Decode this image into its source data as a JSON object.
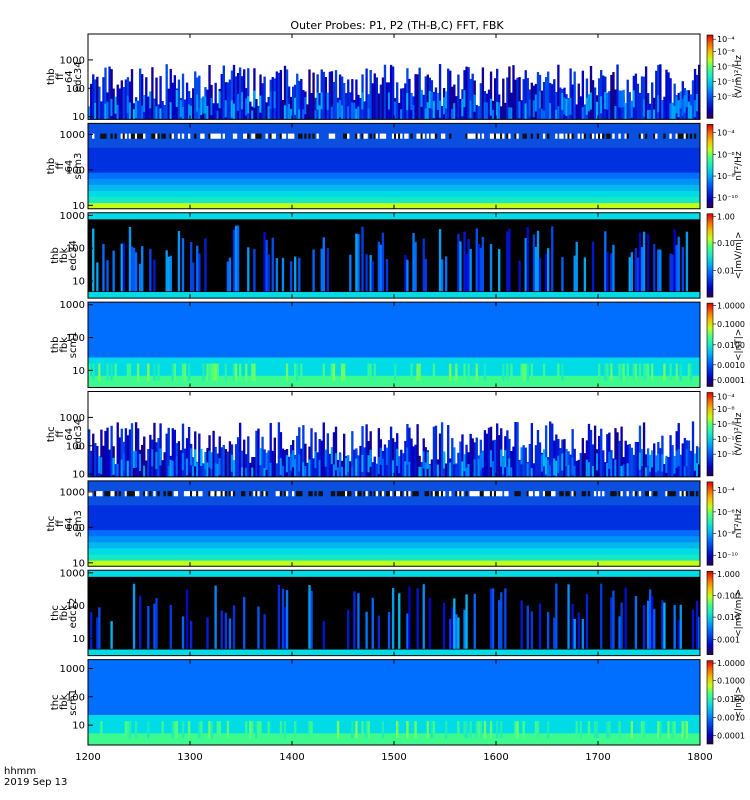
{
  "chart_data": {
    "type": "heatmap",
    "title": "Outer Probes: P1, P2 (TH-B,C) FFT, FBK",
    "x_label_lines": [
      "hhmm",
      "2019 Sep 13"
    ],
    "x_ticks": [
      {
        "v": 1200,
        "label": "1200"
      },
      {
        "v": 1300,
        "label": "1300"
      },
      {
        "v": 1400,
        "label": "1400"
      },
      {
        "v": 1500,
        "label": "1500"
      },
      {
        "v": 1600,
        "label": "1600"
      },
      {
        "v": 1700,
        "label": "1700"
      },
      {
        "v": 1800,
        "label": "1800"
      }
    ],
    "xlim": [
      1200,
      1800
    ],
    "panels": [
      {
        "id": "thb-fft-edc34",
        "ylabel": [
          "thb",
          "ff",
          "64",
          "edc34"
        ],
        "yrange": [
          8,
          8192
        ],
        "yticks": [
          {
            "v": 10,
            "label": "10"
          },
          {
            "v": 100,
            "label": "100"
          },
          {
            "v": 1000,
            "label": "1000"
          }
        ],
        "cb_unit": "(V/m)²/Hz",
        "cb_ticks": [
          {
            "pos": 0.05,
            "label": "10⁻⁴"
          },
          {
            "pos": 0.2,
            "label": "10⁻⁶"
          },
          {
            "pos": 0.38,
            "label": "10⁻⁸"
          },
          {
            "pos": 0.56,
            "label": "10⁻¹⁰"
          },
          {
            "pos": 0.74,
            "label": "10⁻¹²"
          }
        ],
        "style": "e-fft"
      },
      {
        "id": "thb-fft-scm3",
        "ylabel": [
          "thb",
          "ff",
          "64",
          "scm3"
        ],
        "yrange": [
          8,
          2048
        ],
        "yticks": [
          {
            "v": 10,
            "label": "10"
          },
          {
            "v": 100,
            "label": "100"
          },
          {
            "v": 1000,
            "label": "1000"
          }
        ],
        "cb_unit": "nT²/Hz",
        "cb_ticks": [
          {
            "pos": 0.1,
            "label": "10⁻⁴"
          },
          {
            "pos": 0.36,
            "label": "10⁻⁶"
          },
          {
            "pos": 0.62,
            "label": "10⁻⁸"
          },
          {
            "pos": 0.88,
            "label": "10⁻¹⁰"
          }
        ],
        "style": "b-fft"
      },
      {
        "id": "thb-fbk-edc34",
        "ylabel": [
          "thb",
          "fbk",
          "edc34"
        ],
        "yrange": [
          3,
          1200
        ],
        "yticks": [
          {
            "v": 10,
            "label": "10"
          },
          {
            "v": 100,
            "label": "100"
          },
          {
            "v": 1000,
            "label": "1000"
          }
        ],
        "cb_unit": "<|mV/m|>",
        "cb_ticks": [
          {
            "pos": 0.03,
            "label": "1.00"
          },
          {
            "pos": 0.35,
            "label": "0.10"
          },
          {
            "pos": 0.68,
            "label": "0.01"
          }
        ],
        "style": "e-fbk"
      },
      {
        "id": "thb-fbk-scm1",
        "ylabel": [
          "thb",
          "fbk",
          "scm1"
        ],
        "yrange": [
          3,
          1200
        ],
        "yticks": [
          {
            "v": 10,
            "label": "10"
          },
          {
            "v": 100,
            "label": "100"
          },
          {
            "v": 1000,
            "label": "1000"
          }
        ],
        "cb_unit": "<|nT|>",
        "cb_ticks": [
          {
            "pos": 0.03,
            "label": "1.0000"
          },
          {
            "pos": 0.25,
            "label": "0.1000"
          },
          {
            "pos": 0.5,
            "label": "0.0100"
          },
          {
            "pos": 0.74,
            "label": "0.0010"
          },
          {
            "pos": 0.92,
            "label": "0.0001"
          }
        ],
        "style": "b-fbk"
      },
      {
        "id": "thc-fft-edc34",
        "ylabel": [
          "thc",
          "ff",
          "64",
          "edc34"
        ],
        "yrange": [
          8,
          8192
        ],
        "yticks": [
          {
            "v": 10,
            "label": "10"
          },
          {
            "v": 100,
            "label": "100"
          },
          {
            "v": 1000,
            "label": "1000"
          }
        ],
        "cb_unit": "(V/m)²/Hz",
        "cb_ticks": [
          {
            "pos": 0.05,
            "label": "10⁻⁴"
          },
          {
            "pos": 0.2,
            "label": "10⁻⁶"
          },
          {
            "pos": 0.38,
            "label": "10⁻⁸"
          },
          {
            "pos": 0.56,
            "label": "10⁻¹⁰"
          },
          {
            "pos": 0.74,
            "label": "10⁻¹²"
          }
        ],
        "style": "e-fft"
      },
      {
        "id": "thc-fft-scm3",
        "ylabel": [
          "thc",
          "ff",
          "64",
          "scm3"
        ],
        "yrange": [
          8,
          2048
        ],
        "yticks": [
          {
            "v": 10,
            "label": "10"
          },
          {
            "v": 100,
            "label": "100"
          },
          {
            "v": 1000,
            "label": "1000"
          }
        ],
        "cb_unit": "nT²/Hz",
        "cb_ticks": [
          {
            "pos": 0.1,
            "label": "10⁻⁴"
          },
          {
            "pos": 0.36,
            "label": "10⁻⁶"
          },
          {
            "pos": 0.62,
            "label": "10⁻⁸"
          },
          {
            "pos": 0.88,
            "label": "10⁻¹⁰"
          }
        ],
        "style": "b-fft"
      },
      {
        "id": "thc-fbk-edc12",
        "ylabel": [
          "thc",
          "fbk",
          "edc12"
        ],
        "yrange": [
          3,
          1200
        ],
        "yticks": [
          {
            "v": 10,
            "label": "10"
          },
          {
            "v": 100,
            "label": "100"
          },
          {
            "v": 1000,
            "label": "1000"
          }
        ],
        "cb_unit": "<|mV/m|>",
        "cb_ticks": [
          {
            "pos": 0.03,
            "label": "1.000"
          },
          {
            "pos": 0.29,
            "label": "0.100"
          },
          {
            "pos": 0.55,
            "label": "0.010"
          },
          {
            "pos": 0.82,
            "label": "0.001"
          }
        ],
        "style": "e-fbk"
      },
      {
        "id": "thc-fbk-scm1",
        "ylabel": [
          "thc",
          "fbk",
          "scm1"
        ],
        "yrange": [
          2,
          2048
        ],
        "yticks": [
          {
            "v": 10,
            "label": "10"
          },
          {
            "v": 100,
            "label": "100"
          },
          {
            "v": 1000,
            "label": "1000"
          }
        ],
        "cb_unit": "<|nT|>",
        "cb_ticks": [
          {
            "pos": 0.03,
            "label": "1.0000"
          },
          {
            "pos": 0.24,
            "label": "0.1000"
          },
          {
            "pos": 0.46,
            "label": "0.0100"
          },
          {
            "pos": 0.68,
            "label": "0.0010"
          },
          {
            "pos": 0.9,
            "label": "0.0001"
          }
        ],
        "style": "b-fbk"
      }
    ]
  }
}
